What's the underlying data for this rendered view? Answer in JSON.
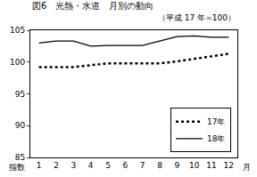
{
  "chart_data": {
    "type": "line",
    "title": "図6　光熱・水道　月別の動向",
    "subtitle": "（平成 17 年=100）",
    "x_label": "月",
    "y_label": "指数",
    "categories": [
      "1",
      "2",
      "3",
      "4",
      "5",
      "6",
      "7",
      "8",
      "9",
      "10",
      "11",
      "12"
    ],
    "series": [
      {
        "name": "17年",
        "color": "#000000",
        "line_style": "dotted",
        "values": [
          99.2,
          99.2,
          99.2,
          99.5,
          99.8,
          99.8,
          99.8,
          99.8,
          100.1,
          100.5,
          100.9,
          101.3
        ]
      },
      {
        "name": "18年",
        "color": "#000000",
        "line_style": "solid",
        "values": [
          103.0,
          103.3,
          103.3,
          102.5,
          102.6,
          102.6,
          102.6,
          103.3,
          104.0,
          104.1,
          103.9,
          103.9
        ]
      }
    ],
    "ylim": [
      85,
      105
    ],
    "yticks": [
      85,
      90,
      95,
      100,
      105
    ],
    "grid": false,
    "legend": "lower right"
  }
}
